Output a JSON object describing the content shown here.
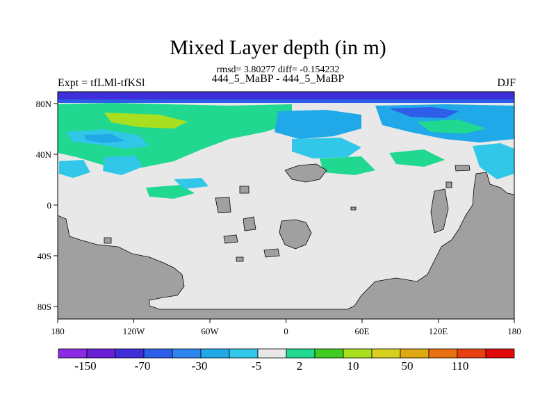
{
  "title": "Mixed Layer depth (in m)",
  "stats": "rmsd= 3.80277 diff= -0.154232",
  "subtitle": "444_5_MaBP - 444_5_MaBP",
  "left_label": "Expt = tfLMl-tfKSl",
  "right_label": "DJF",
  "axes": {
    "x_ticks": [
      "180",
      "120W",
      "60W",
      "0",
      "60E",
      "120E",
      "180"
    ],
    "y_ticks": [
      "80N",
      "40N",
      "0",
      "40S",
      "80S"
    ]
  },
  "colorbar": {
    "labels": [
      "-150",
      "-70",
      "-30",
      "-5",
      "2",
      "10",
      "50",
      "110"
    ],
    "colors": [
      "#8a2be2",
      "#6a1fd6",
      "#3f2fd9",
      "#2c5ee8",
      "#2f86f0",
      "#21a8e8",
      "#31c7e8",
      "#e8e8e8",
      "#20d890",
      "#40cc20",
      "#a8e020",
      "#d8d020",
      "#e0a810",
      "#e87010",
      "#e84010",
      "#e00a0a"
    ]
  },
  "colors": {
    "land": "#a0a0a0",
    "ocean_near_zero": "#e8e8e8"
  }
}
